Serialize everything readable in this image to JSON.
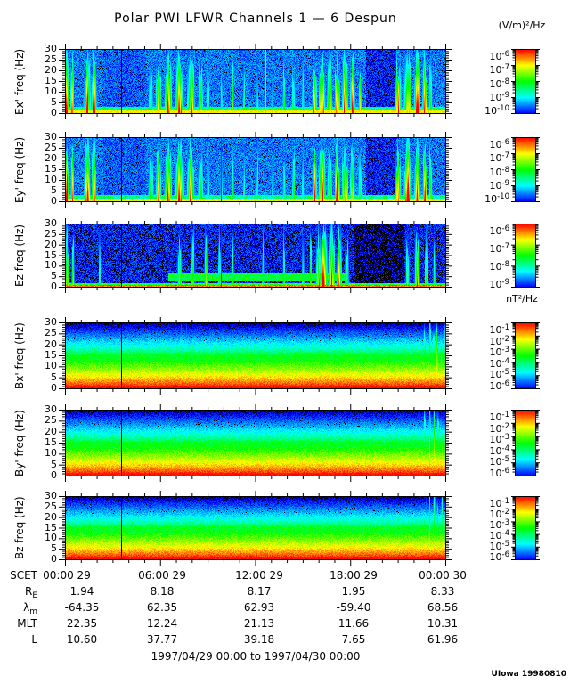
{
  "title": "Polar PWI LFWR Channels 1 — 6 Despun",
  "units": {
    "electric": "(V/m)²/Hz",
    "magnetic": "nT²/Hz"
  },
  "chart_data": {
    "type": "heatmap",
    "title": "Polar PWI LFWR Channels 1 — 6 Despun",
    "description": "Six stacked frequency-time spectrograms (electric field Ex', Ey', Ez and magnetic field Bx', By', Bz) from the Polar PWI Low Frequency Waveform Receiver, despun coordinates, 24 hours of data.",
    "time_axis": {
      "start": "1997/04/29 00:00",
      "end": "1997/04/30 00:00",
      "hours": 24,
      "major_tick_every_hours": 6,
      "tick_labels": [
        "00:00 29",
        "06:00 29",
        "12:00 29",
        "18:00 29",
        "00:00 30"
      ]
    },
    "freq_axis": {
      "range": [
        0,
        30
      ],
      "ticks": [
        30,
        25,
        20,
        15,
        10,
        5,
        0
      ],
      "unit": "Hz"
    },
    "panels": [
      {
        "name": "Ex",
        "ylabel": "Ex' freq (Hz)",
        "unit": "(V/m)²/Hz",
        "colorbar_exponents": [
          -6,
          -7,
          -8,
          -9,
          -10
        ],
        "style": "electric",
        "seed": 11,
        "background": 0.17,
        "speckle": 0.06,
        "bottom_band": 0.82,
        "bb_h": [
          0.05,
          0.1
        ],
        "dips": [
          [
            0.79,
            0.87,
            0.55
          ],
          [
            0.1,
            0.21,
            0.85
          ]
        ],
        "cyan_band": null,
        "bursts": [
          [
            0.004,
            1.0,
            0.004
          ],
          [
            0.018,
            0.85,
            0.003
          ],
          [
            0.058,
            1.0,
            0.005
          ],
          [
            0.075,
            0.95,
            0.004
          ],
          [
            0.225,
            0.6,
            0.004
          ],
          [
            0.245,
            0.75,
            0.005
          ],
          [
            0.27,
            0.85,
            0.006
          ],
          [
            0.3,
            0.95,
            0.007
          ],
          [
            0.33,
            0.9,
            0.006
          ],
          [
            0.355,
            0.7,
            0.004
          ],
          [
            0.375,
            0.5,
            0.003
          ],
          [
            0.41,
            0.45,
            0.002
          ],
          [
            0.44,
            0.5,
            0.002
          ],
          [
            0.47,
            0.48,
            0.002
          ],
          [
            0.505,
            0.45,
            0.002
          ],
          [
            0.545,
            0.42,
            0.002
          ],
          [
            0.575,
            0.5,
            0.003
          ],
          [
            0.6,
            0.55,
            0.003
          ],
          [
            0.625,
            0.5,
            0.002
          ],
          [
            0.655,
            0.8,
            0.004
          ],
          [
            0.675,
            1.0,
            0.005
          ],
          [
            0.695,
            0.9,
            0.004
          ],
          [
            0.715,
            1.0,
            0.004
          ],
          [
            0.735,
            0.95,
            0.005
          ],
          [
            0.755,
            0.85,
            0.004
          ],
          [
            0.775,
            0.6,
            0.003
          ],
          [
            0.875,
            0.8,
            0.005
          ],
          [
            0.9,
            1.0,
            0.006
          ],
          [
            0.925,
            0.95,
            0.005
          ],
          [
            0.945,
            0.85,
            0.004
          ],
          [
            0.96,
            0.65,
            0.003
          ]
        ],
        "lines": [
          [
            0.147,
            "#000000"
          ],
          [
            0.527,
            "#a8e800"
          ]
        ]
      },
      {
        "name": "Ey",
        "ylabel": "Ey' freq (Hz)",
        "unit": "(V/m)²/Hz",
        "colorbar_exponents": [
          -6,
          -7,
          -8,
          -9,
          -10
        ],
        "style": "electric",
        "seed": 22,
        "background": 0.17,
        "speckle": 0.06,
        "bottom_band": 0.82,
        "bb_h": [
          0.05,
          0.1
        ],
        "dips": [
          [
            0.79,
            0.87,
            0.55
          ],
          [
            0.1,
            0.21,
            0.85
          ]
        ],
        "cyan_band": null,
        "bursts": [
          [
            0.004,
            1.0,
            0.004
          ],
          [
            0.018,
            0.85,
            0.003
          ],
          [
            0.058,
            1.0,
            0.005
          ],
          [
            0.075,
            0.95,
            0.004
          ],
          [
            0.225,
            0.6,
            0.004
          ],
          [
            0.245,
            0.75,
            0.005
          ],
          [
            0.27,
            0.85,
            0.006
          ],
          [
            0.3,
            0.95,
            0.007
          ],
          [
            0.33,
            0.9,
            0.006
          ],
          [
            0.355,
            0.7,
            0.004
          ],
          [
            0.375,
            0.5,
            0.003
          ],
          [
            0.41,
            0.45,
            0.002
          ],
          [
            0.44,
            0.5,
            0.002
          ],
          [
            0.47,
            0.48,
            0.002
          ],
          [
            0.505,
            0.45,
            0.002
          ],
          [
            0.545,
            0.42,
            0.002
          ],
          [
            0.575,
            0.5,
            0.003
          ],
          [
            0.6,
            0.55,
            0.003
          ],
          [
            0.625,
            0.5,
            0.002
          ],
          [
            0.655,
            0.8,
            0.004
          ],
          [
            0.675,
            1.0,
            0.005
          ],
          [
            0.695,
            0.9,
            0.004
          ],
          [
            0.715,
            1.0,
            0.004
          ],
          [
            0.735,
            0.95,
            0.005
          ],
          [
            0.755,
            0.85,
            0.004
          ],
          [
            0.775,
            0.6,
            0.003
          ],
          [
            0.875,
            0.8,
            0.005
          ],
          [
            0.9,
            1.0,
            0.006
          ],
          [
            0.925,
            0.95,
            0.005
          ],
          [
            0.945,
            0.85,
            0.004
          ],
          [
            0.96,
            0.65,
            0.003
          ]
        ],
        "lines": [
          [
            0.147,
            "#000000"
          ],
          [
            0.409,
            "#bb1100"
          ]
        ]
      },
      {
        "name": "Ez",
        "ylabel": "Ez freq (Hz)",
        "unit": "(V/m)²/Hz",
        "colorbar_exponents": [
          -6,
          -7,
          -8,
          -9
        ],
        "style": "electric",
        "seed": 33,
        "background": 0.1,
        "speckle": 0.2,
        "bottom_band": 0.95,
        "bb_h": [
          0.03,
          0.07
        ],
        "dips": [
          [
            0.76,
            0.89,
            0.45
          ]
        ],
        "cyan_band": [
          0.27,
          0.74
        ],
        "bursts": [
          [
            0.004,
            1.0,
            0.003
          ],
          [
            0.02,
            0.7,
            0.002
          ],
          [
            0.09,
            0.5,
            0.002
          ],
          [
            0.3,
            0.65,
            0.003
          ],
          [
            0.335,
            0.6,
            0.003
          ],
          [
            0.37,
            0.55,
            0.003
          ],
          [
            0.405,
            0.6,
            0.002
          ],
          [
            0.44,
            0.5,
            0.002
          ],
          [
            0.52,
            0.45,
            0.002
          ],
          [
            0.575,
            0.5,
            0.002
          ],
          [
            0.625,
            0.45,
            0.002
          ],
          [
            0.645,
            0.5,
            0.002
          ],
          [
            0.665,
            0.9,
            0.004
          ],
          [
            0.68,
            1.0,
            0.006
          ],
          [
            0.7,
            1.0,
            0.005
          ],
          [
            0.72,
            0.8,
            0.004
          ],
          [
            0.74,
            0.6,
            0.003
          ],
          [
            0.9,
            0.6,
            0.003
          ],
          [
            0.925,
            0.75,
            0.004
          ],
          [
            0.95,
            0.7,
            0.003
          ],
          [
            0.97,
            0.5,
            0.002
          ]
        ],
        "lines": [
          [
            0.147,
            "#000000"
          ],
          [
            0.409,
            "#bb1100"
          ]
        ]
      },
      {
        "name": "Bx",
        "ylabel": "Bx' freq (Hz)",
        "unit": "nT²/Hz",
        "colorbar_exponents": [
          -1,
          -2,
          -3,
          -4,
          -5,
          -6
        ],
        "style": "magnetic",
        "seed": 44,
        "background": 0,
        "speckle": 0.03,
        "bottom_band": 0.97,
        "bb_h": [
          0.05,
          0.0
        ],
        "dips": [],
        "cyan_band": null,
        "bursts": [
          [
            0.285,
            0.35,
            0.0015
          ],
          [
            0.303,
            0.42,
            0.002
          ],
          [
            0.318,
            0.3,
            0.0015
          ],
          [
            0.46,
            0.5,
            0.0015
          ],
          [
            0.83,
            0.25,
            0.002
          ],
          [
            0.945,
            0.55,
            0.003
          ],
          [
            0.958,
            0.8,
            0.0025
          ],
          [
            0.968,
            0.75,
            0.002
          ],
          [
            0.978,
            0.85,
            0.0025
          ],
          [
            0.988,
            0.7,
            0.002
          ],
          [
            0.997,
            0.6,
            0.002
          ]
        ],
        "lines": [
          [
            0.147,
            "#000000"
          ]
        ]
      },
      {
        "name": "By",
        "ylabel": "By' freq (Hz)",
        "unit": "nT²/Hz",
        "colorbar_exponents": [
          -1,
          -2,
          -3,
          -4,
          -5,
          -6
        ],
        "style": "magnetic",
        "seed": 55,
        "background": 0,
        "speckle": 0.03,
        "bottom_band": 0.97,
        "bb_h": [
          0.05,
          0.0
        ],
        "dips": [],
        "cyan_band": null,
        "bursts": [
          [
            0.3,
            0.3,
            0.0015
          ],
          [
            0.46,
            0.35,
            0.0015
          ],
          [
            0.945,
            0.6,
            0.003
          ],
          [
            0.958,
            0.85,
            0.0025
          ],
          [
            0.97,
            0.8,
            0.002
          ],
          [
            0.98,
            0.75,
            0.0025
          ],
          [
            0.99,
            0.65,
            0.002
          ]
        ],
        "lines": [
          [
            0.147,
            "#000000"
          ]
        ]
      },
      {
        "name": "Bz",
        "ylabel": "Bz freq (Hz)",
        "unit": "nT²/Hz",
        "colorbar_exponents": [
          -1,
          -2,
          -3,
          -4,
          -5,
          -6
        ],
        "style": "magnetic",
        "seed": 66,
        "background": 0,
        "speckle": 0.03,
        "bottom_band": 0.97,
        "bb_h": [
          0.05,
          0.0
        ],
        "dips": [],
        "cyan_band": null,
        "bursts": [
          [
            0.945,
            0.55,
            0.003
          ],
          [
            0.958,
            0.8,
            0.0025
          ],
          [
            0.97,
            0.75,
            0.002
          ],
          [
            0.98,
            0.8,
            0.0025
          ],
          [
            0.99,
            0.6,
            0.002
          ]
        ],
        "lines": [
          [
            0.147,
            "#000000"
          ]
        ]
      }
    ],
    "ephemeris": {
      "rows": [
        {
          "label": "SCET",
          "sub": "",
          "values": [
            "00:00 29",
            "06:00 29",
            "12:00 29",
            "18:00 29",
            "00:00 30"
          ]
        },
        {
          "label": "R",
          "sub": "E",
          "values": [
            "1.94",
            "8.18",
            "8.17",
            "1.95",
            "8.33"
          ]
        },
        {
          "label": "λ",
          "sub": "m",
          "values": [
            "-64.35",
            "62.35",
            "62.93",
            "-59.40",
            "68.56"
          ]
        },
        {
          "label": "MLT",
          "sub": "",
          "values": [
            "22.35",
            "12.24",
            "21.13",
            "11.66",
            "10.31"
          ]
        },
        {
          "label": "L",
          "sub": "",
          "values": [
            "10.60",
            "37.77",
            "39.18",
            "7.65",
            "61.96"
          ]
        }
      ]
    },
    "footer_range": "1997/04/29 00:00 to 1997/04/30 00:00",
    "credit": "UIowa 19980810",
    "colors": {
      "frame": "#000000",
      "colormap_low": "#0000b0",
      "colormap_high": "#ff0000",
      "background": "#ffffff"
    }
  }
}
